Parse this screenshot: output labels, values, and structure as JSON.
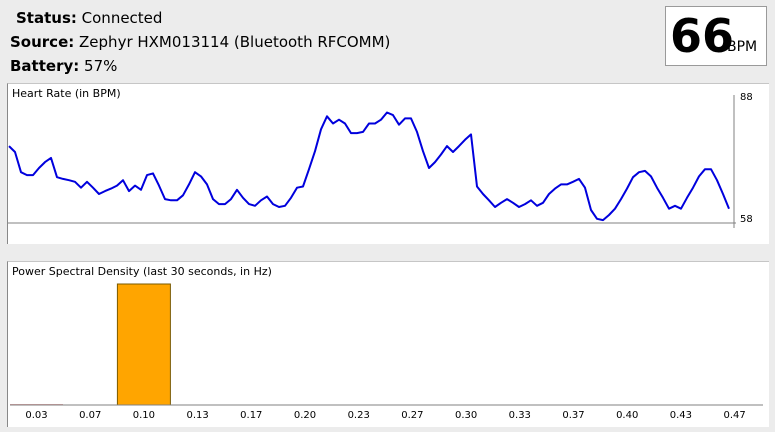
{
  "status": {
    "label": "Status:",
    "value": "Connected"
  },
  "source": {
    "label": "Source:",
    "value": "Zephyr HXM013114 (Bluetooth RFCOMM)"
  },
  "battery": {
    "label": "Battery:",
    "value": "57%"
  },
  "bpm": {
    "value": "66",
    "unit": "BPM"
  },
  "colors": {
    "hr_line": "#0000dd",
    "psd_bar": "#ffa500",
    "psd_low": "#b22222",
    "axis": "#808080"
  },
  "chart_data": [
    {
      "type": "line",
      "title": "Heart Rate (in BPM)",
      "ylim": [
        58,
        88
      ],
      "yticks": [
        "88",
        "58"
      ],
      "series": [
        {
          "values": [
            76.3,
            74.9,
            70.1,
            69.4,
            69.4,
            71.1,
            72.5,
            73.5,
            68.9,
            68.5,
            68.2,
            67.8,
            66.4,
            67.8,
            66.4,
            64.9,
            65.6,
            66.2,
            66.9,
            68.2,
            65.6,
            66.9,
            65.9,
            69.4,
            69.8,
            66.9,
            63.7,
            63.4,
            63.4,
            64.6,
            67.2,
            70.1,
            69.1,
            67.2,
            63.7,
            62.5,
            62.5,
            63.7,
            65.9,
            64.0,
            62.5,
            62.1,
            63.4,
            64.3,
            62.5,
            61.8,
            62.1,
            64.0,
            66.4,
            66.7,
            70.8,
            75.1,
            80.3,
            83.4,
            81.7,
            82.6,
            81.7,
            79.4,
            79.4,
            79.7,
            81.7,
            81.7,
            82.6,
            84.3,
            83.7,
            81.4,
            82.9,
            82.9,
            79.7,
            75.1,
            71.1,
            72.5,
            74.3,
            76.3,
            74.9,
            76.3,
            77.8,
            79.1,
            66.7,
            64.9,
            63.4,
            61.8,
            62.8,
            63.7,
            62.8,
            61.8,
            62.5,
            63.4,
            62.1,
            62.8,
            64.9,
            66.2,
            67.2,
            67.2,
            67.8,
            68.5,
            66.4,
            61.1,
            59.0,
            58.7,
            59.9,
            61.4,
            63.7,
            66.2,
            68.9,
            70.1,
            70.4,
            69.1,
            66.4,
            64.0,
            61.4,
            62.1,
            61.4,
            64.0,
            66.4,
            69.1,
            70.8,
            70.8,
            68.2,
            64.9,
            61.4
          ]
        }
      ]
    },
    {
      "type": "bar",
      "title": "Power Spectral Density (last 30 seconds, in Hz)",
      "categories": [
        "0.03",
        "0.07",
        "0.10",
        "0.13",
        "0.17",
        "0.20",
        "0.23",
        "0.27",
        "0.30",
        "0.33",
        "0.37",
        "0.40",
        "0.43",
        "0.47"
      ],
      "values": [
        0.6,
        0.0,
        100,
        0.0,
        0.0,
        0.4,
        0.3,
        0.2,
        0.3,
        0.0,
        0.0,
        0.0,
        0.0,
        0.0
      ]
    }
  ]
}
